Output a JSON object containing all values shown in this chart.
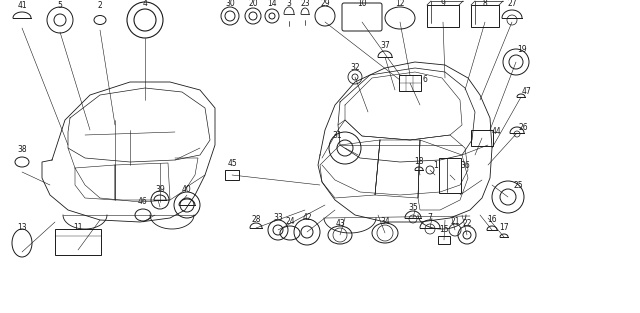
{
  "bg_color": "#ffffff",
  "line_color": "#1a1a1a",
  "fig_width": 6.4,
  "fig_height": 3.13,
  "dpi": 100
}
